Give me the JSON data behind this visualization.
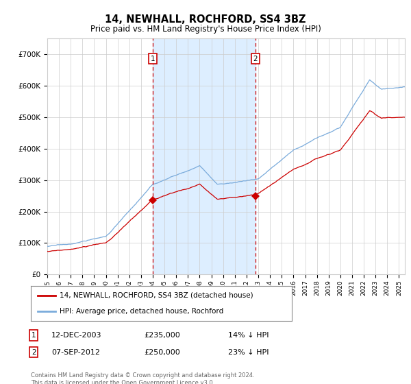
{
  "title": "14, NEWHALL, ROCHFORD, SS4 3BZ",
  "subtitle": "Price paid vs. HM Land Registry's House Price Index (HPI)",
  "ylim": [
    0,
    750000
  ],
  "yticks": [
    0,
    100000,
    200000,
    300000,
    400000,
    500000,
    600000,
    700000
  ],
  "ytick_labels": [
    "£0",
    "£100K",
    "£200K",
    "£300K",
    "£400K",
    "£500K",
    "£600K",
    "£700K"
  ],
  "xlim_start": 1995.0,
  "xlim_end": 2025.5,
  "vline1_x": 2004.0,
  "vline2_x": 2012.75,
  "sale1_price": 235000,
  "sale1_label": "14% ↓ HPI",
  "sale1_date": "12-DEC-2003",
  "sale2_price": 250000,
  "sale2_label": "23% ↓ HPI",
  "sale2_date": "07-SEP-2012",
  "legend_label_red": "14, NEWHALL, ROCHFORD, SS4 3BZ (detached house)",
  "legend_label_blue": "HPI: Average price, detached house, Rochford",
  "footnote": "Contains HM Land Registry data © Crown copyright and database right 2024.\nThis data is licensed under the Open Government Licence v3.0.",
  "red_color": "#cc0000",
  "blue_color": "#7aabdb",
  "fill_color": "#ddeeff",
  "bg_color": "#ffffff",
  "grid_color": "#cccccc"
}
